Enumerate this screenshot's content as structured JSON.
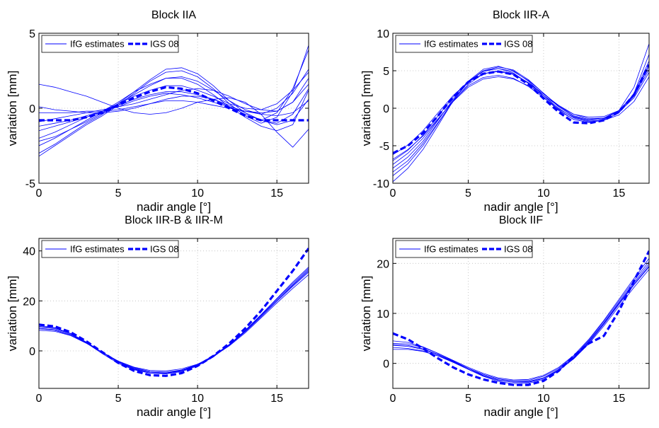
{
  "chart_data": [
    {
      "type": "line",
      "title": "Block IIA",
      "xlabel": "nadir angle [°]",
      "ylabel": "variation [mm]",
      "xlim": [
        0,
        17
      ],
      "ylim": [
        -5,
        5
      ],
      "xticks": [
        "0",
        "5",
        "10",
        "15"
      ],
      "xtick_values": [
        0,
        5,
        10,
        15
      ],
      "yticks": [
        "-5",
        "0",
        "5"
      ],
      "ytick_values": [
        -5,
        0,
        5
      ],
      "grid": true,
      "legend": {
        "placement": "top-left",
        "entries": [
          "IfG estimates",
          "IGS 08"
        ]
      },
      "x": [
        0,
        1,
        2,
        3,
        4,
        5,
        6,
        7,
        8,
        9,
        10,
        11,
        12,
        13,
        14,
        15,
        16,
        17
      ],
      "series": [
        {
          "name": "IGS 08",
          "style": "dashed",
          "values": [
            -0.8,
            -0.8,
            -0.8,
            -0.6,
            -0.3,
            0.2,
            0.7,
            1.1,
            1.4,
            1.3,
            1.0,
            0.5,
            0.0,
            -0.5,
            -0.8,
            -0.8,
            -0.8,
            -0.8
          ]
        },
        {
          "name": "IfG estimates",
          "style": "solid",
          "values": [
            -3.2,
            -2.5,
            -1.8,
            -1.1,
            -0.5,
            0.2,
            1.0,
            1.8,
            2.4,
            2.5,
            2.1,
            1.3,
            0.3,
            -0.5,
            -1.0,
            -0.6,
            1.1,
            4.2
          ]
        },
        {
          "name": "IfG estimates",
          "style": "solid",
          "values": [
            -3.0,
            -2.4,
            -1.7,
            -1.0,
            -0.4,
            0.3,
            1.1,
            1.9,
            2.6,
            2.7,
            2.3,
            1.5,
            0.5,
            -0.3,
            -0.8,
            -0.3,
            1.3,
            3.9
          ]
        },
        {
          "name": "IfG estimates",
          "style": "solid",
          "values": [
            -2.2,
            -1.9,
            -1.4,
            -0.9,
            -0.3,
            0.3,
            0.9,
            1.5,
            2.0,
            2.1,
            1.8,
            1.2,
            0.5,
            -0.1,
            -0.4,
            0.0,
            1.0,
            2.6
          ]
        },
        {
          "name": "IfG estimates",
          "style": "solid",
          "values": [
            -1.5,
            -1.2,
            -0.9,
            -0.6,
            -0.2,
            0.3,
            0.8,
            1.2,
            1.5,
            1.5,
            1.2,
            0.8,
            0.3,
            0.0,
            -0.1,
            0.3,
            1.2,
            2.4
          ]
        },
        {
          "name": "IfG estimates",
          "style": "solid",
          "values": [
            1.6,
            1.4,
            1.1,
            0.8,
            0.4,
            0.0,
            -0.3,
            -0.4,
            -0.3,
            0.0,
            0.4,
            0.6,
            0.7,
            0.4,
            -0.4,
            -1.6,
            -2.6,
            -1.4
          ]
        },
        {
          "name": "IfG estimates",
          "style": "solid",
          "values": [
            -2.0,
            -1.6,
            -1.1,
            -0.6,
            -0.2,
            0.2,
            0.6,
            0.9,
            1.1,
            1.1,
            0.9,
            0.6,
            0.1,
            -0.4,
            -0.8,
            -1.0,
            -0.4,
            1.3
          ]
        },
        {
          "name": "IfG estimates",
          "style": "solid",
          "values": [
            -1.2,
            -1.0,
            -0.8,
            -0.5,
            -0.2,
            0.1,
            0.5,
            0.8,
            1.0,
            0.9,
            0.7,
            0.4,
            0.1,
            -0.2,
            -0.3,
            -0.2,
            0.4,
            1.6
          ]
        },
        {
          "name": "IfG estimates",
          "style": "solid",
          "values": [
            -0.3,
            -0.3,
            -0.3,
            -0.2,
            -0.2,
            -0.1,
            0.1,
            0.3,
            0.5,
            0.5,
            0.4,
            0.2,
            0.0,
            -0.2,
            -0.4,
            -0.5,
            -0.3,
            0.5
          ]
        },
        {
          "name": "IfG estimates",
          "style": "solid",
          "values": [
            0.1,
            -0.1,
            -0.2,
            -0.3,
            -0.3,
            -0.2,
            0.0,
            0.3,
            0.6,
            0.8,
            0.8,
            0.6,
            0.2,
            -0.3,
            -0.8,
            -1.1,
            -0.8,
            0.6
          ]
        },
        {
          "name": "IfG estimates",
          "style": "solid",
          "values": [
            -2.5,
            -2.0,
            -1.4,
            -0.8,
            -0.2,
            0.4,
            1.1,
            1.6,
            2.0,
            2.0,
            1.6,
            0.9,
            0.1,
            -0.6,
            -1.2,
            -1.5,
            -1.1,
            1.2
          ]
        },
        {
          "name": "IfG estimates",
          "style": "solid",
          "values": [
            -0.9,
            -0.7,
            -0.5,
            -0.3,
            -0.1,
            0.1,
            0.3,
            0.6,
            0.9,
            1.2,
            1.3,
            1.2,
            0.8,
            0.3,
            -0.1,
            -0.2,
            0.4,
            2.0
          ]
        }
      ]
    },
    {
      "type": "line",
      "title": "Block IIR-A",
      "xlabel": "nadir angle [°]",
      "ylabel": "variation [mm]",
      "xlim": [
        0,
        17
      ],
      "ylim": [
        -10,
        10
      ],
      "xticks": [
        "0",
        "5",
        "10",
        "15"
      ],
      "xtick_values": [
        0,
        5,
        10,
        15
      ],
      "yticks": [
        "-10",
        "-5",
        "0",
        "5",
        "10"
      ],
      "ytick_values": [
        -10,
        -5,
        0,
        5,
        10
      ],
      "grid": true,
      "legend": {
        "placement": "top-left",
        "entries": [
          "IfG estimates",
          "IGS 08"
        ]
      },
      "x": [
        0,
        1,
        2,
        3,
        4,
        5,
        6,
        7,
        8,
        9,
        10,
        11,
        12,
        13,
        14,
        15,
        16,
        17
      ],
      "series": [
        {
          "name": "IGS 08",
          "style": "dashed",
          "values": [
            -6.0,
            -5.0,
            -3.3,
            -1.0,
            1.5,
            3.5,
            4.6,
            4.9,
            4.5,
            3.2,
            1.3,
            -0.5,
            -1.9,
            -2.0,
            -1.6,
            -0.5,
            1.8,
            5.8
          ]
        },
        {
          "name": "IfG estimates",
          "style": "solid",
          "values": [
            -9.8,
            -8.0,
            -5.5,
            -2.3,
            1.0,
            3.6,
            5.2,
            5.6,
            5.0,
            3.6,
            1.7,
            -0.2,
            -1.5,
            -1.9,
            -1.5,
            -0.3,
            2.8,
            8.6
          ]
        },
        {
          "name": "IfG estimates",
          "style": "solid",
          "values": [
            -9.0,
            -7.4,
            -5.0,
            -2.0,
            1.0,
            3.5,
            5.0,
            5.3,
            4.7,
            3.3,
            1.5,
            -0.3,
            -1.5,
            -1.9,
            -1.6,
            -0.6,
            2.0,
            7.2
          ]
        },
        {
          "name": "IfG estimates",
          "style": "solid",
          "values": [
            -8.0,
            -6.5,
            -4.4,
            -1.6,
            1.2,
            3.5,
            5.0,
            5.5,
            5.1,
            3.8,
            2.0,
            0.2,
            -1.1,
            -1.6,
            -1.4,
            -0.4,
            1.9,
            6.3
          ]
        },
        {
          "name": "IfG estimates",
          "style": "solid",
          "values": [
            -7.0,
            -5.6,
            -3.6,
            -1.0,
            1.5,
            3.6,
            4.9,
            5.3,
            4.9,
            3.7,
            2.0,
            0.3,
            -1.0,
            -1.5,
            -1.3,
            -0.3,
            1.8,
            5.6
          ]
        },
        {
          "name": "IfG estimates",
          "style": "solid",
          "values": [
            -6.2,
            -4.9,
            -3.0,
            -0.6,
            1.7,
            3.5,
            4.6,
            4.9,
            4.5,
            3.4,
            1.9,
            0.4,
            -0.8,
            -1.4,
            -1.3,
            -0.5,
            1.4,
            4.8
          ]
        },
        {
          "name": "IfG estimates",
          "style": "solid",
          "values": [
            -8.5,
            -7.0,
            -4.7,
            -1.9,
            0.9,
            3.2,
            4.6,
            5.0,
            4.6,
            3.4,
            1.7,
            0.0,
            -1.3,
            -1.8,
            -1.6,
            -0.6,
            1.6,
            5.2
          ]
        },
        {
          "name": "IfG estimates",
          "style": "solid",
          "values": [
            -7.5,
            -6.0,
            -4.0,
            -1.5,
            1.0,
            3.0,
            4.1,
            4.4,
            4.0,
            2.9,
            1.4,
            -0.1,
            -1.2,
            -1.7,
            -1.6,
            -0.9,
            0.9,
            4.2
          ]
        },
        {
          "name": "IfG estimates",
          "style": "solid",
          "values": [
            -6.8,
            -5.5,
            -3.7,
            -1.4,
            0.9,
            2.8,
            3.9,
            4.2,
            3.9,
            3.0,
            1.7,
            0.3,
            -0.8,
            -1.2,
            -1.1,
            -0.3,
            1.7,
            5.9
          ]
        }
      ]
    },
    {
      "type": "line",
      "title": "Block IIR-B & IIR-M",
      "xlabel": "nadir angle [°]",
      "ylabel": "variation [mm]",
      "xlim": [
        0,
        17
      ],
      "ylim": [
        -15,
        45
      ],
      "xticks": [
        "0",
        "5",
        "10",
        "15"
      ],
      "xtick_values": [
        0,
        5,
        10,
        15
      ],
      "yticks": [
        "0",
        "20",
        "40"
      ],
      "ytick_values": [
        0,
        20,
        40
      ],
      "grid": true,
      "legend": {
        "placement": "top-left",
        "entries": [
          "IfG estimates",
          "IGS 08"
        ]
      },
      "x": [
        0,
        1,
        2,
        3,
        4,
        5,
        6,
        7,
        8,
        9,
        10,
        11,
        12,
        13,
        14,
        15,
        16,
        17
      ],
      "series": [
        {
          "name": "IGS 08",
          "style": "dashed",
          "values": [
            10.5,
            9.8,
            7.5,
            3.8,
            -0.5,
            -4.8,
            -8.0,
            -9.7,
            -10.0,
            -8.9,
            -6.0,
            -2.0,
            3.0,
            9.0,
            16.0,
            24.0,
            32.0,
            41.0
          ]
        },
        {
          "name": "IfG estimates",
          "style": "solid",
          "values": [
            9.8,
            9.2,
            7.0,
            3.5,
            -0.6,
            -4.5,
            -7.2,
            -8.8,
            -9.0,
            -8.0,
            -5.8,
            -2.2,
            2.5,
            8.2,
            14.5,
            21.0,
            27.5,
            33.5
          ]
        },
        {
          "name": "IfG estimates",
          "style": "solid",
          "values": [
            9.0,
            8.5,
            6.6,
            3.2,
            -0.7,
            -4.3,
            -7.0,
            -8.5,
            -8.8,
            -7.8,
            -5.7,
            -2.3,
            2.3,
            7.8,
            14.0,
            20.3,
            26.5,
            32.5
          ]
        },
        {
          "name": "IfG estimates",
          "style": "solid",
          "values": [
            8.2,
            7.8,
            6.1,
            3.0,
            -0.6,
            -4.1,
            -6.7,
            -8.2,
            -8.5,
            -7.6,
            -5.5,
            -2.2,
            2.2,
            7.6,
            13.6,
            19.8,
            25.8,
            31.5
          ]
        },
        {
          "name": "IfG estimates",
          "style": "solid",
          "values": [
            10.2,
            9.3,
            6.9,
            3.1,
            -1.1,
            -5.0,
            -7.6,
            -8.9,
            -8.9,
            -7.7,
            -5.4,
            -1.9,
            2.6,
            8.0,
            14.0,
            20.2,
            26.2,
            32.0
          ]
        },
        {
          "name": "IfG estimates",
          "style": "solid",
          "values": [
            8.8,
            8.2,
            6.3,
            3.1,
            -0.6,
            -4.1,
            -6.5,
            -7.8,
            -8.0,
            -7.2,
            -5.3,
            -2.2,
            2.0,
            7.2,
            13.2,
            19.2,
            25.0,
            30.5
          ]
        },
        {
          "name": "IfG estimates",
          "style": "solid",
          "values": [
            9.5,
            8.9,
            6.9,
            3.4,
            -0.7,
            -4.6,
            -7.4,
            -8.9,
            -9.2,
            -8.3,
            -6.0,
            -2.4,
            2.4,
            8.1,
            14.3,
            20.8,
            27.0,
            33.0
          ]
        }
      ]
    },
    {
      "type": "line",
      "title": "Block IIF",
      "xlabel": "nadir angle [°]",
      "ylabel": "variation [mm]",
      "xlim": [
        0,
        17
      ],
      "ylim": [
        -5,
        25
      ],
      "xticks": [
        "0",
        "5",
        "10",
        "15"
      ],
      "xtick_values": [
        0,
        5,
        10,
        15
      ],
      "yticks": [
        "0",
        "10",
        "20"
      ],
      "ytick_values": [
        0,
        10,
        20
      ],
      "grid": true,
      "legend": {
        "placement": "top-left",
        "entries": [
          "IfG estimates",
          "IGS 08"
        ]
      },
      "x": [
        0,
        1,
        2,
        3,
        4,
        5,
        6,
        7,
        8,
        9,
        10,
        11,
        12,
        13,
        14,
        15,
        16,
        17
      ],
      "series": [
        {
          "name": "IGS 08",
          "style": "dashed",
          "values": [
            6.0,
            4.8,
            3.0,
            1.0,
            -0.8,
            -2.2,
            -3.2,
            -3.9,
            -4.3,
            -4.3,
            -3.5,
            -1.5,
            1.5,
            4.0,
            5.5,
            10.5,
            16.5,
            22.5
          ]
        },
        {
          "name": "IfG estimates",
          "style": "solid",
          "values": [
            4.5,
            4.2,
            3.3,
            2.0,
            0.6,
            -0.8,
            -2.0,
            -2.9,
            -3.3,
            -3.2,
            -2.4,
            -0.8,
            1.6,
            4.8,
            8.6,
            12.8,
            17.0,
            21.0
          ]
        },
        {
          "name": "IfG estimates",
          "style": "solid",
          "values": [
            3.8,
            3.6,
            2.9,
            1.8,
            0.4,
            -1.0,
            -2.2,
            -3.1,
            -3.5,
            -3.4,
            -2.6,
            -1.0,
            1.4,
            4.6,
            8.4,
            12.5,
            16.6,
            20.4
          ]
        },
        {
          "name": "IfG estimates",
          "style": "solid",
          "values": [
            3.2,
            3.0,
            2.5,
            1.5,
            0.2,
            -1.2,
            -2.5,
            -3.4,
            -3.8,
            -3.7,
            -2.9,
            -1.2,
            1.2,
            4.4,
            8.1,
            12.2,
            16.2,
            19.9
          ]
        },
        {
          "name": "IfG estimates",
          "style": "solid",
          "values": [
            4.0,
            3.9,
            3.2,
            2.0,
            0.5,
            -1.0,
            -2.4,
            -3.3,
            -3.8,
            -3.8,
            -3.0,
            -1.4,
            1.0,
            4.1,
            7.8,
            11.8,
            15.7,
            19.3
          ]
        },
        {
          "name": "IfG estimates",
          "style": "solid",
          "values": [
            2.8,
            2.8,
            2.4,
            1.5,
            0.3,
            -1.0,
            -2.2,
            -3.1,
            -3.6,
            -3.6,
            -2.9,
            -1.4,
            0.9,
            3.9,
            7.5,
            11.4,
            15.2,
            18.8
          ]
        },
        {
          "name": "IfG estimates",
          "style": "solid",
          "values": [
            3.6,
            3.4,
            2.8,
            1.7,
            0.3,
            -1.2,
            -2.6,
            -3.6,
            -4.1,
            -4.0,
            -3.2,
            -1.5,
            1.1,
            4.3,
            8.0,
            12.0,
            15.9,
            19.5
          ]
        }
      ]
    }
  ],
  "colors": {
    "line": "#0000ff",
    "grid": "#bdbdbd",
    "axis": "#000000",
    "background": "#ffffff"
  }
}
